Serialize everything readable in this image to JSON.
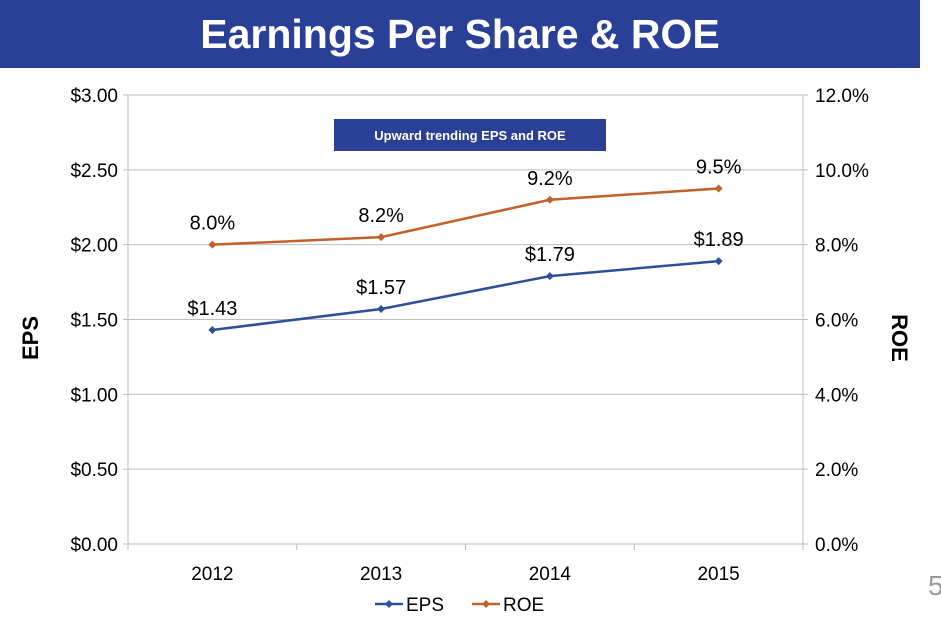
{
  "colors": {
    "title_bg": "#2a3f96",
    "eps": "#2e4f9a",
    "roe": "#c0622a",
    "grid": "#bdbdbd",
    "annotation_bg": "#2a3f96"
  },
  "page": {
    "title": "Earnings Per Share & ROE",
    "slide_number": "5"
  },
  "chart_data": {
    "type": "line",
    "title": "Earnings Per Share & ROE",
    "categories": [
      "2012",
      "2013",
      "2014",
      "2015"
    ],
    "series": [
      {
        "name": "EPS",
        "axis": "left",
        "values": [
          1.43,
          1.57,
          1.79,
          1.89
        ],
        "labels": [
          "$1.43",
          "$1.57",
          "$1.79",
          "$1.89"
        ]
      },
      {
        "name": "ROE",
        "axis": "right",
        "values": [
          8.0,
          8.2,
          9.2,
          9.5
        ],
        "labels": [
          "8.0%",
          "8.2%",
          "9.2%",
          "9.5%"
        ]
      }
    ],
    "ylabel": "EPS",
    "y2label": "ROE",
    "ylim": [
      0,
      3
    ],
    "y2lim": [
      0,
      12
    ],
    "yticks": [
      "$0.00",
      "$0.50",
      "$1.00",
      "$1.50",
      "$2.00",
      "$2.50",
      "$3.00"
    ],
    "y2ticks": [
      "0.0%",
      "2.0%",
      "4.0%",
      "6.0%",
      "8.0%",
      "10.0%",
      "12.0%"
    ],
    "grid": true,
    "legend": "bottom",
    "annotation": "Upward trending EPS and ROE"
  }
}
